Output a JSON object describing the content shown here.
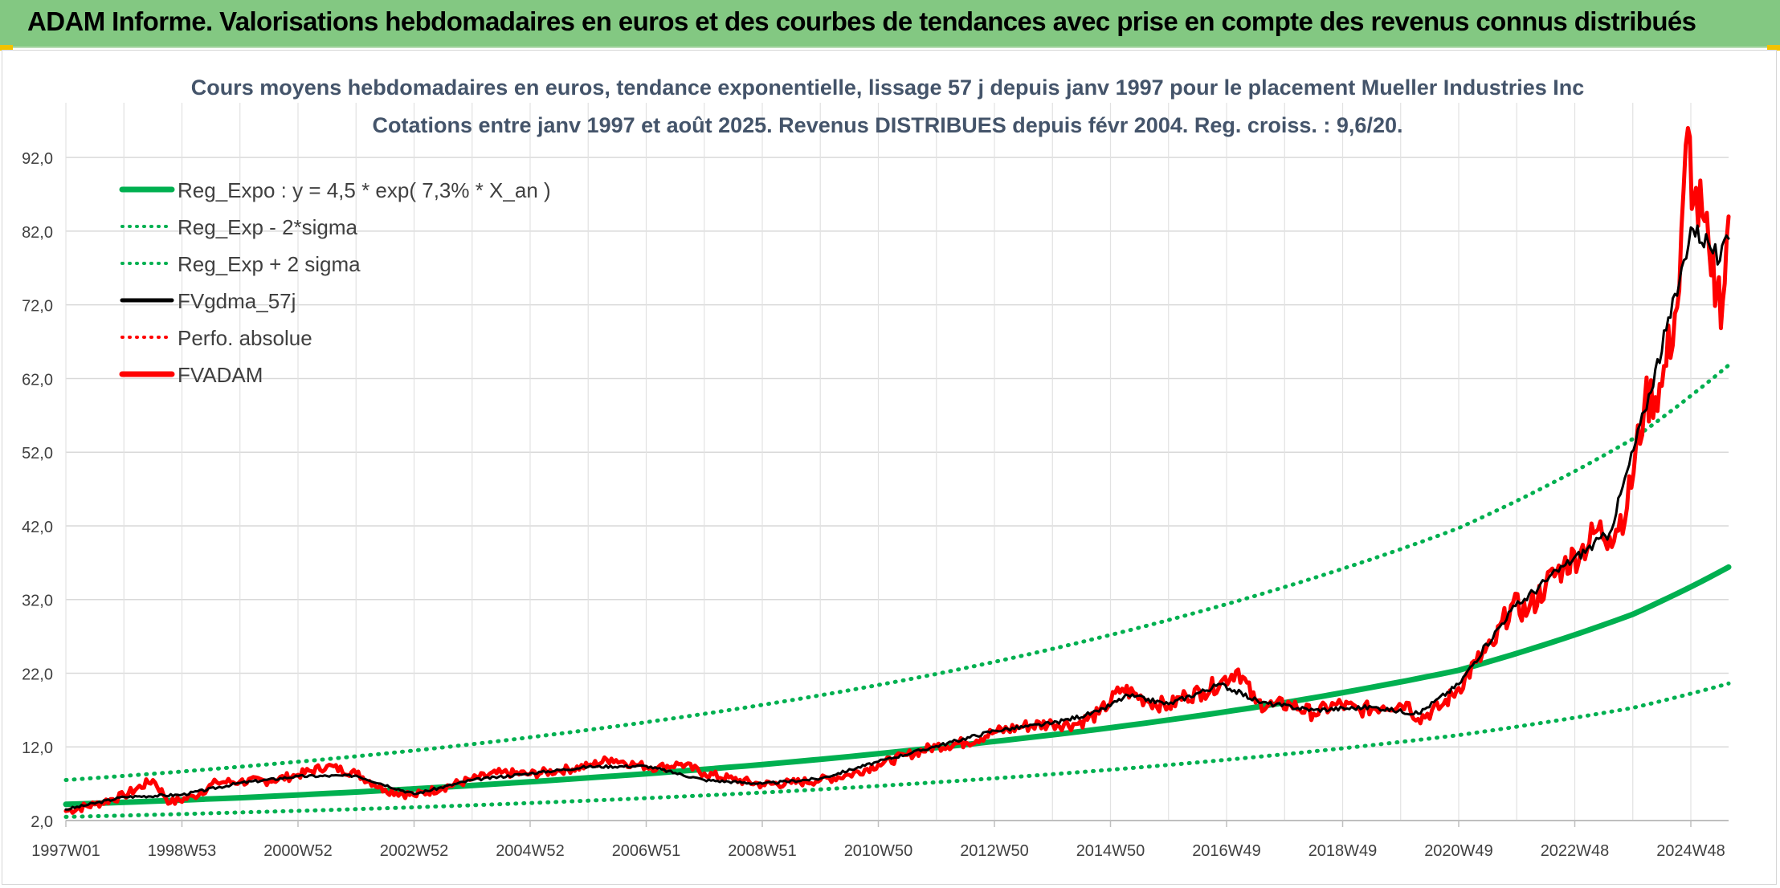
{
  "header": {
    "title": "ADAM Informe. Valorisations hebdomadaires en euros et des courbes de tendances avec prise en compte des revenus connus distribués"
  },
  "colors": {
    "banner": "#83c882",
    "reg_expo": "#00b050",
    "fvgdma": "#000000",
    "fvadam": "#ff0000",
    "perfo": "#ff0000"
  },
  "chart_data": {
    "type": "line",
    "title": "Cours moyens hebdomadaires en euros, tendance exponentielle, lissage 57 j depuis janv 1997 pour le placement Mueller Industries Inc",
    "subtitle": "Cotations entre janv 1997 et août 2025. Revenus DISTRIBUES depuis févr 2004. Reg. croiss. : 9,6/20.",
    "xlabel": "",
    "ylabel": "",
    "ylim": [
      2.0,
      99.0
    ],
    "yticks": [
      "92,0",
      "82,0",
      "72,0",
      "62,0",
      "52,0",
      "42,0",
      "32,0",
      "22,0",
      "12,0",
      "2,0"
    ],
    "xtick_labels": [
      "1997W01",
      "1998W53",
      "2000W52",
      "2002W52",
      "2004W52",
      "2006W51",
      "2008W51",
      "2010W50",
      "2012W50",
      "2014W50",
      "2016W49",
      "2018W49",
      "2020W49",
      "2022W48",
      "2024W48"
    ],
    "x_range": [
      1997.0,
      2025.65
    ],
    "grid": true,
    "legend_position": "top-left",
    "legend": [
      {
        "label": "Reg_Expo : y = 4,5 * exp( 7,3% *  X_an )",
        "style": "solid-thick-green"
      },
      {
        "label": "Reg_Exp - 2*sigma",
        "style": "dotted-green"
      },
      {
        "label": "Reg_Exp + 2 sigma",
        "style": "dotted-green"
      },
      {
        "label": "FVgdma_57j",
        "style": "solid-black"
      },
      {
        "label": "Perfo. absolue",
        "style": "dotted-red"
      },
      {
        "label": "FVADAM",
        "style": "solid-thick-red"
      }
    ],
    "series": [
      {
        "name": "Reg_Expo : y = 4,5 * exp( 7,3% *  X_an )",
        "trend": "exponential",
        "x": [
          1997.0,
          2000.0,
          2003.0,
          2006.0,
          2009.0,
          2012.0,
          2015.0,
          2018.0,
          2021.0,
          2024.0,
          2025.65
        ],
        "values": [
          4.2,
          5.1,
          6.3,
          7.8,
          9.6,
          11.9,
          14.6,
          18.0,
          22.4,
          30.0,
          36.4
        ]
      },
      {
        "name": "Reg_Exp - 2*sigma",
        "trend": "exponential",
        "x": [
          1997.0,
          2000.0,
          2003.0,
          2006.0,
          2009.0,
          2012.0,
          2015.0,
          2018.0,
          2021.0,
          2024.0,
          2025.65
        ],
        "values": [
          2.5,
          3.1,
          3.8,
          4.7,
          5.8,
          7.2,
          8.9,
          11.0,
          13.6,
          17.3,
          20.6
        ]
      },
      {
        "name": "Reg_Exp + 2 sigma",
        "trend": "exponential",
        "x": [
          1997.0,
          2000.0,
          2003.0,
          2006.0,
          2009.0,
          2012.0,
          2015.0,
          2018.0,
          2021.0,
          2024.0,
          2025.65
        ],
        "values": [
          7.5,
          9.3,
          11.5,
          14.3,
          17.7,
          21.9,
          27.2,
          33.7,
          41.7,
          53.8,
          63.8
        ]
      },
      {
        "name": "FVADAM",
        "x": [
          1997.0,
          1997.5,
          1998.0,
          1998.5,
          1998.8,
          1999.2,
          1999.6,
          2000.0,
          2000.5,
          2001.0,
          2001.5,
          2002.0,
          2002.5,
          2003.0,
          2003.5,
          2004.0,
          2004.5,
          2005.0,
          2005.5,
          2006.0,
          2006.4,
          2006.8,
          2007.2,
          2007.6,
          2008.0,
          2008.5,
          2009.0,
          2009.5,
          2010.0,
          2010.5,
          2011.0,
          2011.5,
          2012.0,
          2012.5,
          2013.0,
          2013.5,
          2014.0,
          2014.4,
          2014.8,
          2015.2,
          2015.6,
          2016.0,
          2016.3,
          2016.6,
          2016.9,
          2017.2,
          2017.5,
          2017.8,
          2018.1,
          2018.5,
          2018.9,
          2019.3,
          2019.7,
          2020.1,
          2020.3,
          2020.7,
          2021.0,
          2021.3,
          2021.6,
          2021.9,
          2022.2,
          2022.5,
          2022.8,
          2023.1,
          2023.4,
          2023.6,
          2023.9,
          2024.2,
          2024.5,
          2024.8,
          2024.95,
          2025.05,
          2025.2,
          2025.35,
          2025.45,
          2025.55,
          2025.65
        ],
        "values": [
          3.3,
          4.2,
          5.4,
          7.5,
          4.4,
          5.3,
          7.2,
          7.3,
          7.4,
          8.2,
          9.4,
          8.4,
          6.2,
          5.4,
          6.5,
          7.6,
          8.5,
          8.3,
          8.8,
          9.4,
          10.4,
          9.6,
          9.2,
          9.7,
          8.4,
          7.6,
          6.9,
          7.1,
          7.5,
          8.2,
          9.6,
          10.9,
          12.1,
          12.6,
          14.0,
          14.8,
          15.2,
          15.1,
          16.5,
          19.9,
          18.4,
          17.5,
          19.0,
          19.5,
          20.8,
          22.5,
          18.0,
          17.6,
          17.8,
          16.5,
          17.8,
          17.0,
          17.5,
          18.0,
          15.8,
          17.5,
          20.0,
          23.5,
          25.8,
          31.2,
          30.5,
          34.0,
          36.5,
          38.5,
          41.5,
          40.5,
          44.5,
          58.5,
          61.0,
          74.0,
          96.0,
          86.0,
          84.0,
          76.0,
          74.0,
          72.5,
          84.0
        ]
      },
      {
        "name": "FVgdma_57j",
        "x": [
          1997.0,
          1998.0,
          1999.0,
          2000.0,
          2001.0,
          2002.0,
          2003.0,
          2004.0,
          2005.0,
          2006.0,
          2007.0,
          2008.0,
          2009.0,
          2010.0,
          2011.0,
          2012.0,
          2013.0,
          2014.0,
          2014.8,
          2015.3,
          2016.0,
          2016.9,
          2017.6,
          2018.5,
          2019.5,
          2020.3,
          2021.0,
          2021.9,
          2022.8,
          2023.6,
          2024.2,
          2024.8,
          2025.0,
          2025.3,
          2025.5,
          2025.65
        ],
        "values": [
          3.5,
          5.2,
          5.5,
          7.1,
          8.0,
          8.1,
          5.6,
          7.5,
          8.4,
          9.3,
          9.4,
          7.5,
          7.0,
          7.7,
          10.0,
          12.1,
          14.2,
          15.2,
          16.8,
          19.0,
          17.8,
          20.5,
          18.0,
          17.0,
          17.4,
          16.5,
          20.5,
          30.5,
          36.5,
          41.0,
          57.5,
          75.0,
          82.5,
          80.5,
          78.0,
          81.0
        ]
      }
    ]
  }
}
